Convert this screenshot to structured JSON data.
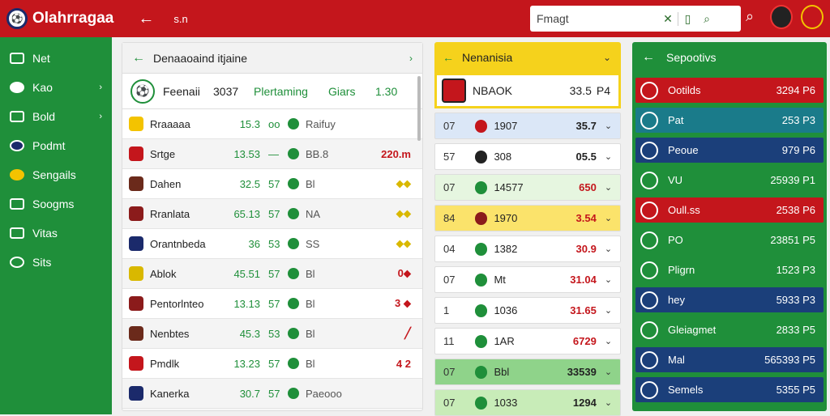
{
  "header": {
    "app_title": "Olahrragaa",
    "crumb": "s.n",
    "search_value": "Fmagt",
    "search_icons": [
      "✕",
      "⌕"
    ]
  },
  "sidebar": {
    "items": [
      {
        "label": "Net",
        "chevron": ""
      },
      {
        "label": "Kao",
        "chevron": "›"
      },
      {
        "label": "Bold",
        "chevron": "›"
      },
      {
        "label": "Podmt",
        "chevron": ""
      },
      {
        "label": "Sengails",
        "chevron": ""
      },
      {
        "label": "Soogms",
        "chevron": ""
      },
      {
        "label": "Vitas",
        "chevron": ""
      },
      {
        "label": "Sits",
        "chevron": ""
      }
    ]
  },
  "matches": {
    "title": "Denaaoaind itjaine",
    "featured": {
      "name": "Feenaii",
      "num": "3037",
      "label": "Plertaming",
      "status": "Giars",
      "value": "1.30"
    },
    "rows": [
      {
        "name": "Rraaaaa",
        "num": "15.3",
        "small": "oo",
        "team": "Raifuy",
        "val": "",
        "color": "#f3c300",
        "valcolor": "#1f8f3a"
      },
      {
        "name": "Srtge",
        "num": "13.53",
        "small": "—",
        "team": "BB.8",
        "val": "220.m",
        "color": "#c4161c",
        "valcolor": "#c4161c"
      },
      {
        "name": "Dahen",
        "num": "32.5",
        "small": "57",
        "team": "Bl",
        "val": "⬥⬥",
        "color": "#6b2a1b",
        "valcolor": "#d9b800"
      },
      {
        "name": "Rranlata",
        "num": "65.13",
        "small": "57",
        "team": "NA",
        "val": "⬥⬥",
        "color": "#8b1b1b",
        "valcolor": "#d9b800"
      },
      {
        "name": "Orantnbeda",
        "num": "36",
        "small": "53",
        "team": "SS",
        "val": "⬥⬥",
        "color": "#1b2a6b",
        "valcolor": "#d9b800"
      },
      {
        "name": "Ablok",
        "num": "45.51",
        "small": "57",
        "team": "Bl",
        "val": "0⬥",
        "color": "#d9b800",
        "valcolor": "#c4161c"
      },
      {
        "name": "Pentorlnteo",
        "num": "13.13",
        "small": "57",
        "team": "Bl",
        "val": "3 ⬥",
        "color": "#8b1b1b",
        "valcolor": "#c4161c"
      },
      {
        "name": "Nenbtes",
        "num": "45.3",
        "small": "53",
        "team": "Bl",
        "val": "╱",
        "color": "#6b2a1b",
        "valcolor": "#c4161c"
      },
      {
        "name": "Pmdlk",
        "num": "13.23",
        "small": "57",
        "team": "Bl",
        "val": "4 2",
        "color": "#c4161c",
        "valcolor": "#c4161c"
      },
      {
        "name": "Kanerka",
        "num": "30.7",
        "small": "57",
        "team": "Paeooo",
        "val": "",
        "color": "#1b2a6b",
        "valcolor": "#1f8f3a"
      }
    ]
  },
  "standings": {
    "title": "Nenanisia",
    "featured": {
      "code": "NBAOK",
      "value": "33.5",
      "unit": "P4"
    },
    "rows": [
      {
        "n": "07",
        "code": "1907",
        "v": "35.7",
        "bg": "#dbe7f7",
        "color": "#c4161c",
        "vcolor": "#222"
      },
      {
        "n": "57",
        "code": "308",
        "v": "05.5",
        "bg": "#ffffff",
        "color": "#222",
        "vcolor": "#222"
      },
      {
        "n": "07",
        "code": "14577",
        "v": "650",
        "bg": "#e6f6e0",
        "color": "#1f8f3a",
        "vcolor": "#c4161c"
      },
      {
        "n": "84",
        "code": "1970",
        "v": "3.54",
        "bg": "#fbe36b",
        "color": "#8b1b1b",
        "vcolor": "#c4161c"
      },
      {
        "n": "04",
        "code": "1382",
        "v": "30.9",
        "bg": "#ffffff",
        "color": "#1f8f3a",
        "vcolor": "#c4161c"
      },
      {
        "n": "07",
        "code": "Mt",
        "v": "31.04",
        "bg": "#ffffff",
        "color": "#1f8f3a",
        "vcolor": "#c4161c"
      },
      {
        "n": "1",
        "code": "1036",
        "v": "31.65",
        "bg": "#ffffff",
        "color": "#1f8f3a",
        "vcolor": "#c4161c"
      },
      {
        "n": "11",
        "code": "1AR",
        "v": "6729",
        "bg": "#ffffff",
        "color": "#1f8f3a",
        "vcolor": "#c4161c"
      },
      {
        "n": "07",
        "code": "Bbl",
        "v": "33539",
        "bg": "#8fd38a",
        "color": "#1f8f3a",
        "vcolor": "#222"
      },
      {
        "n": "07",
        "code": "1033",
        "v": "1294",
        "bg": "#c8ecb8",
        "color": "#1f8f3a",
        "vcolor": "#222"
      }
    ]
  },
  "side_list": {
    "title": "Sepootivs",
    "rows": [
      {
        "label": "Ootilds",
        "v": "3294 P6",
        "bg": "#c4161c"
      },
      {
        "label": "Pat",
        "v": "253 P3",
        "bg": "#1a7b8a"
      },
      {
        "label": "Peoue",
        "v": "979 P6",
        "bg": "#1b3f7a"
      },
      {
        "label": "VU",
        "v": "25939 P1",
        "bg": "#1f8f3a"
      },
      {
        "label": "Oull.ss",
        "v": "2538 P6",
        "bg": "#c4161c"
      },
      {
        "label": "PO",
        "v": "23851 P5",
        "bg": "#1f8f3a"
      },
      {
        "label": "Pligrn",
        "v": "1523 P3",
        "bg": "#1f8f3a"
      },
      {
        "label": "hey",
        "v": "5933 P3",
        "bg": "#1b3f7a"
      },
      {
        "label": "Gleiagmet",
        "v": "2833 P5",
        "bg": "#1f8f3a"
      },
      {
        "label": "Mal",
        "v": "565393 P5",
        "bg": "#1b3f7a"
      },
      {
        "label": "Semels",
        "v": "5355 P5",
        "bg": "#1b3f7a"
      }
    ]
  }
}
